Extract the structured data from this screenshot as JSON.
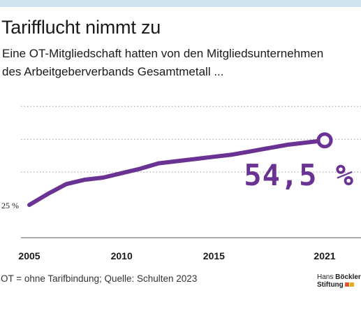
{
  "title": "Tarifflucht nimmt zu",
  "subtitle_line1": "Eine OT-Mitgliedschaft hatten von den Mitgliedsunternehmen",
  "subtitle_line2": "des Arbeitgeberverbands Gesamtmetall ...",
  "footnote": "OT = ohne Tarifbindung; Quelle: Schulten 2023",
  "logo": {
    "line1_regular": "Hans ",
    "line1_bold": "Böckler",
    "line2": "Stiftung",
    "colors": [
      "#e4572e",
      "#f3a712"
    ]
  },
  "colors": {
    "line": "#6a3393",
    "grid": "#9a9a9a",
    "topbar": "#cfe3f1"
  },
  "chart_data": {
    "type": "line",
    "x": [
      2005,
      2006,
      2007,
      2008,
      2009,
      2010,
      2011,
      2012,
      2013,
      2014,
      2015,
      2016,
      2017,
      2018,
      2019,
      2020,
      2021
    ],
    "series": [
      {
        "values": [
          25,
          30,
          34.5,
          36.5,
          37.5,
          39.5,
          41.5,
          44,
          45,
          46,
          47,
          48,
          49.5,
          51,
          52.5,
          53.5,
          54.5
        ]
      }
    ],
    "xticks": [
      "2005",
      "2010",
      "2015",
      "2021"
    ],
    "xtick_values": [
      2005,
      2010,
      2015,
      2021
    ],
    "ytick_label": "25 %",
    "ytick_value": 25,
    "end_label": "54,5 %",
    "grid_values": [
      25,
      40,
      55,
      70
    ],
    "ylim": [
      10,
      72
    ],
    "grid": true
  }
}
